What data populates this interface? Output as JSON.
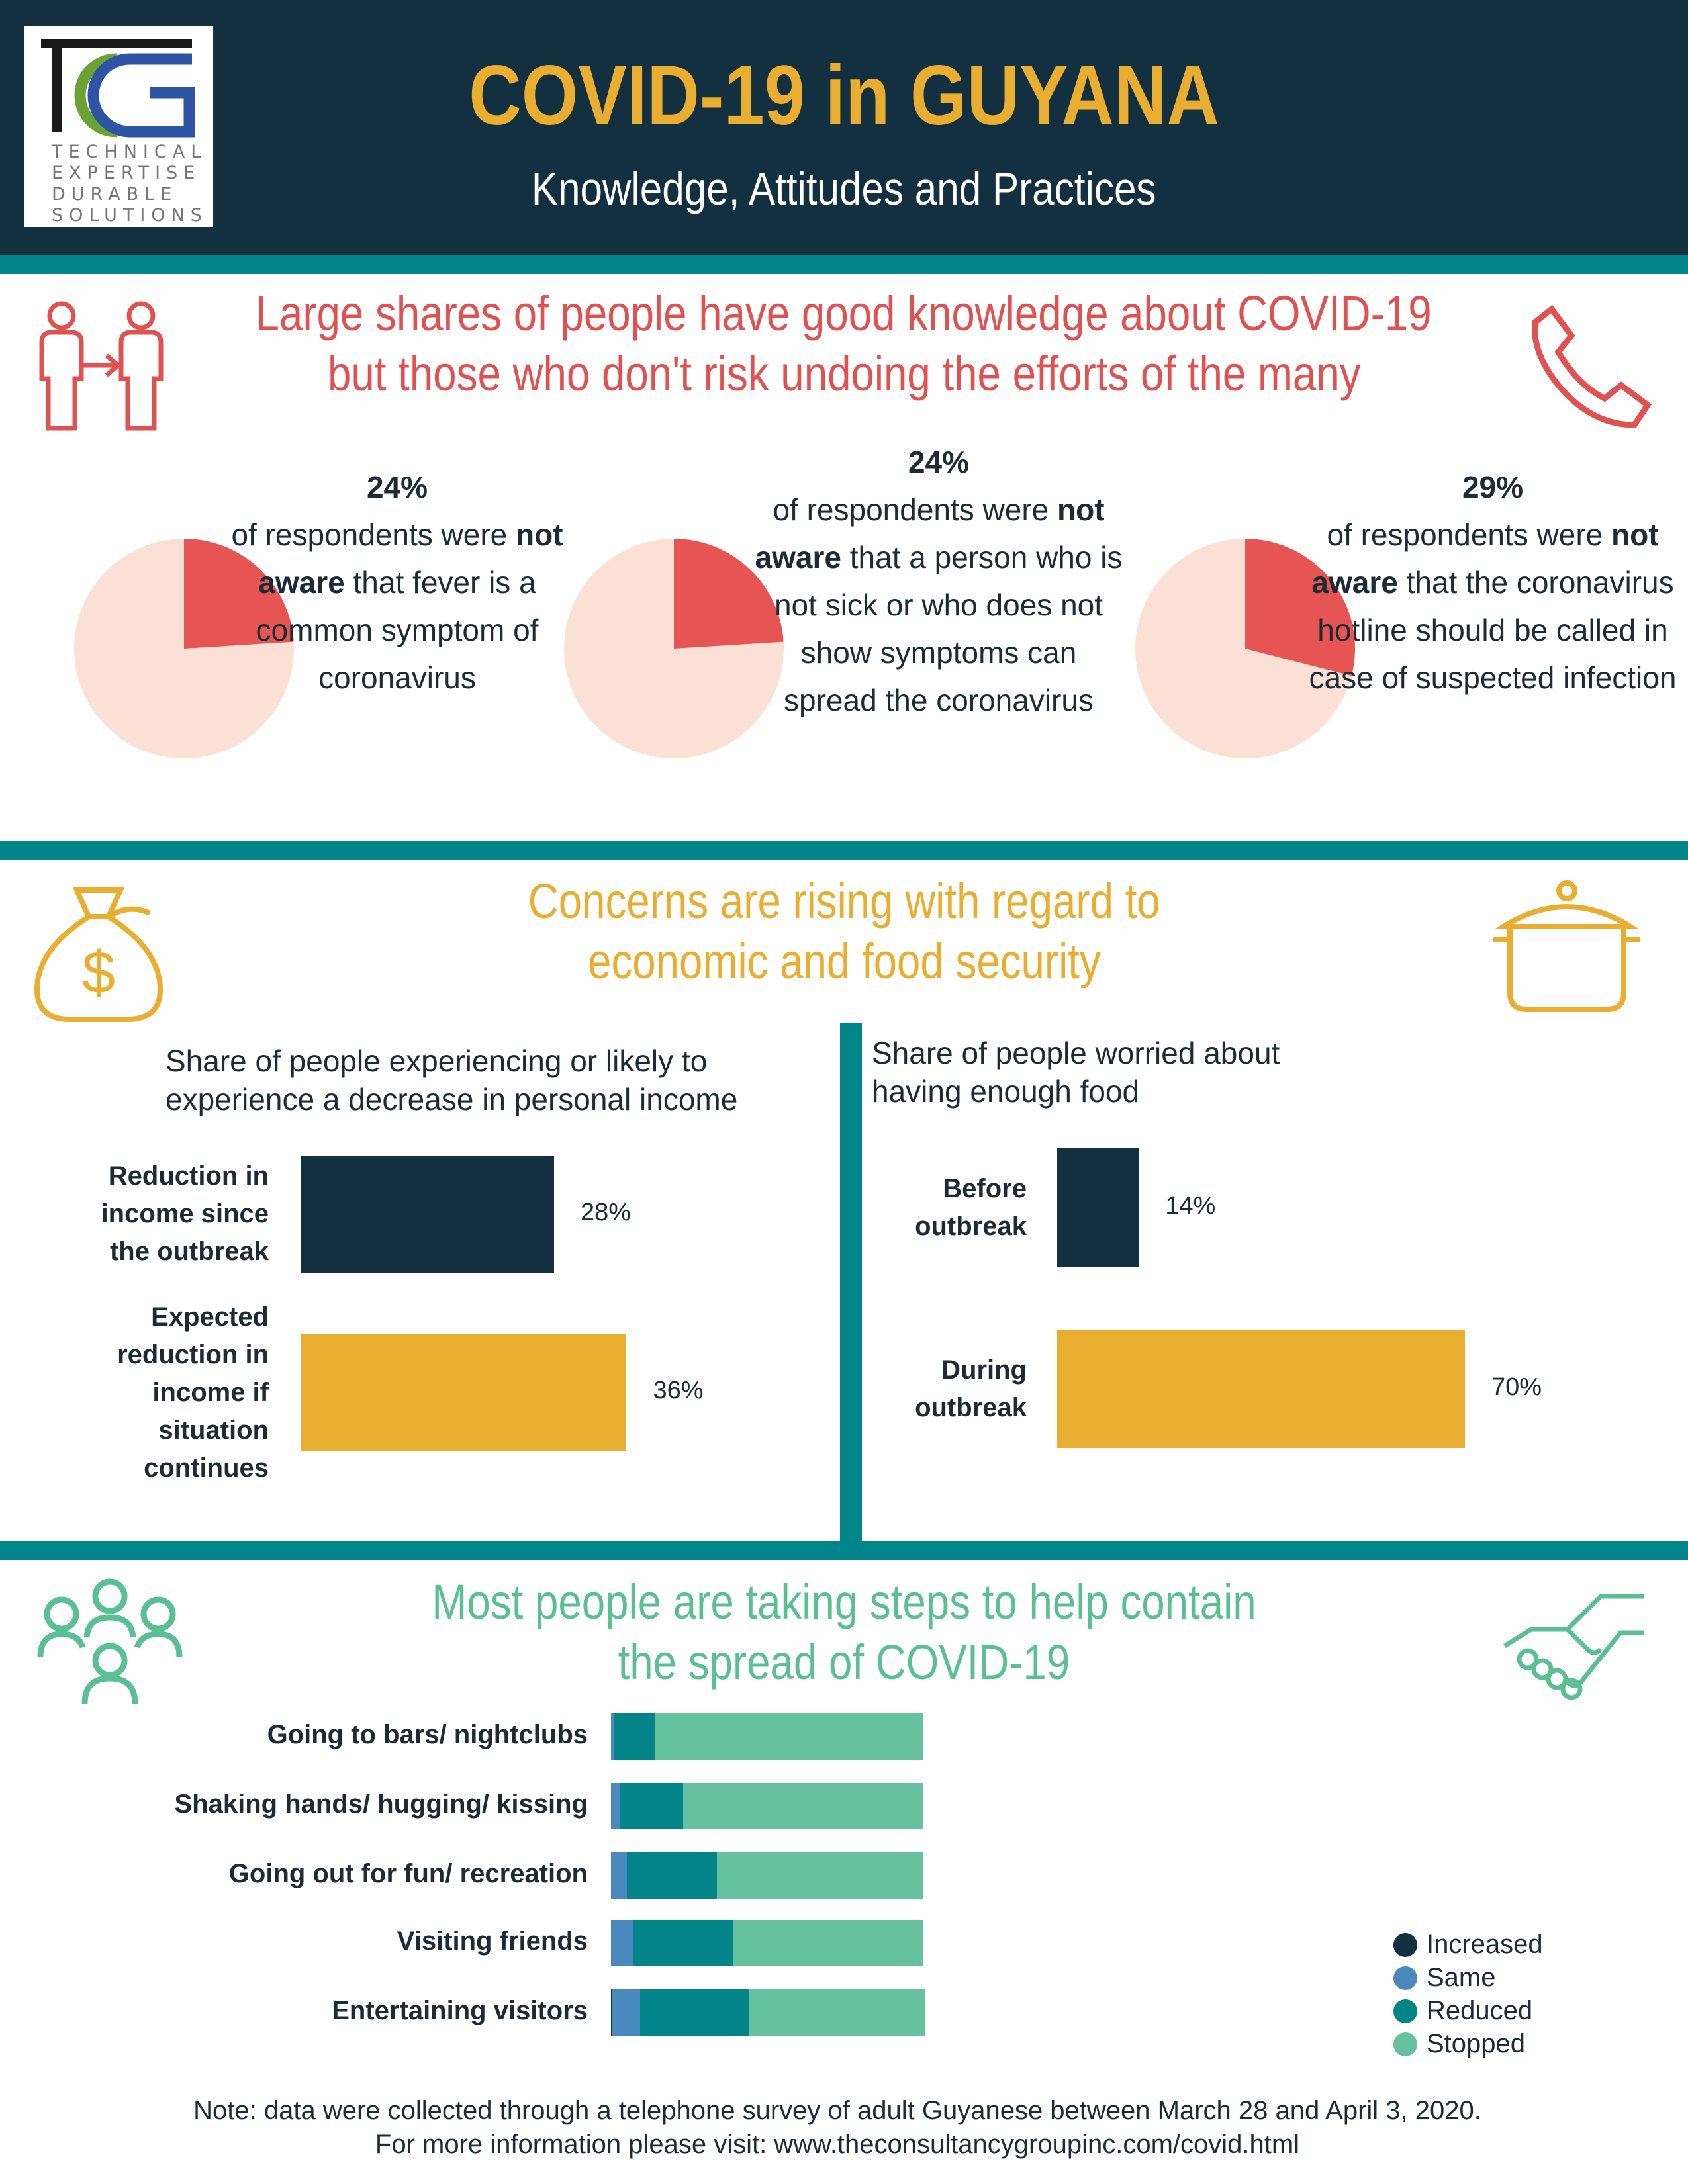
{
  "header": {
    "title": "COVID-19 in GUYANA",
    "subtitle": "Knowledge, Attitudes and Practices",
    "logo_text": "TCG TECHNICAL EXPERTISE DURABLE SOLUTIONS",
    "title_color": "#e9ae2f",
    "bg_color": "#12303f"
  },
  "section1": {
    "headline": [
      "Large shares of people have good knowledge about COVID-19",
      "but those who don't risk undoing the efforts of the many"
    ],
    "color": "#e05252",
    "icons": [
      "people-transfer-icon",
      "phone-icon"
    ],
    "pies": [
      {
        "pct": "24%",
        "value": 24,
        "pre": "of respondents were ",
        "bold": "not aware",
        "post": " that fever is a common symptom of coronavirus"
      },
      {
        "pct": "24%",
        "value": 24,
        "pre": "of respondents were ",
        "bold": "not aware",
        "post": " that a person who is not sick or who does not show symptoms can spread the coronavirus"
      },
      {
        "pct": "29%",
        "value": 29,
        "pre": "of respondents were ",
        "bold": "not aware",
        "post": " that the coronavirus hotline should be called in case of suspected infection"
      }
    ]
  },
  "section2": {
    "headline": [
      "Concerns are rising with regard to",
      "economic and food security"
    ],
    "color": "#e9ae2f",
    "icons": [
      "money-bag-icon",
      "cooking-pot-icon"
    ],
    "income": {
      "title": [
        "Share of people experiencing or likely to",
        "experience a decrease in personal income"
      ],
      "bars": [
        {
          "label": [
            "Reduction in",
            "income since",
            "the outbreak"
          ],
          "value": 28,
          "text": "28%",
          "color": "#12303f"
        },
        {
          "label": [
            "Expected",
            "reduction in",
            "income if",
            "situation",
            "continues"
          ],
          "value": 36,
          "text": "36%",
          "color": "#e9ae2f"
        }
      ]
    },
    "food": {
      "title": [
        "Share of people worried about",
        "having enough food"
      ],
      "bars": [
        {
          "label": [
            "Before",
            "outbreak"
          ],
          "value": 14,
          "text": "14%",
          "color": "#12303f"
        },
        {
          "label": [
            "During",
            "outbreak"
          ],
          "value": 70,
          "text": "70%",
          "color": "#e9ae2f"
        }
      ]
    }
  },
  "section3": {
    "headline": [
      "Most people are taking steps to help contain",
      "the spread of COVID-19"
    ],
    "color": "#5bbf95",
    "icons": [
      "group-people-icon",
      "handshake-icon"
    ]
  },
  "chart_data": [
    {
      "type": "pie",
      "values": [
        24,
        76
      ],
      "label": "24%"
    },
    {
      "type": "pie",
      "values": [
        24,
        76
      ],
      "label": "24%"
    },
    {
      "type": "pie",
      "values": [
        29,
        71
      ],
      "label": "29%"
    },
    {
      "type": "bar",
      "orientation": "horizontal",
      "title": "Share of people experiencing or likely to experience a decrease in personal income",
      "categories": [
        "Reduction in income since the outbreak",
        "Expected reduction in income if situation continues"
      ],
      "values": [
        28,
        36
      ]
    },
    {
      "type": "bar",
      "orientation": "horizontal",
      "title": "Share of people worried about having enough food",
      "categories": [
        "Before outbreak",
        "During outbreak"
      ],
      "values": [
        14,
        70
      ]
    },
    {
      "type": "bar",
      "orientation": "horizontal",
      "stacked": true,
      "legend": "bottom-right",
      "categories": [
        "Going to bars/ nightclubs",
        "Shaking hands/ hugging/ kissing",
        "Going out for fun/ recreation",
        "Visiting friends",
        "Entertaining visitors"
      ],
      "series": [
        {
          "name": "Increased",
          "color": "#12303f",
          "values": [
            0,
            0,
            0,
            0,
            0.3
          ]
        },
        {
          "name": "Same",
          "color": "#4a89c0",
          "values": [
            1,
            3,
            5,
            7,
            9
          ]
        },
        {
          "name": "Reduced",
          "color": "#028489",
          "values": [
            13,
            20,
            29,
            32,
            35
          ]
        },
        {
          "name": "Stopped",
          "color": "#66c1a0",
          "values": [
            86,
            77,
            66,
            61,
            56
          ]
        }
      ]
    }
  ],
  "footer": {
    "note": [
      "Note: data were collected through a telephone survey of adult Guyanese between March 28 and April 3, 2020.",
      "For more information please visit: www.theconsultancygroupinc.com/covid.html"
    ]
  }
}
